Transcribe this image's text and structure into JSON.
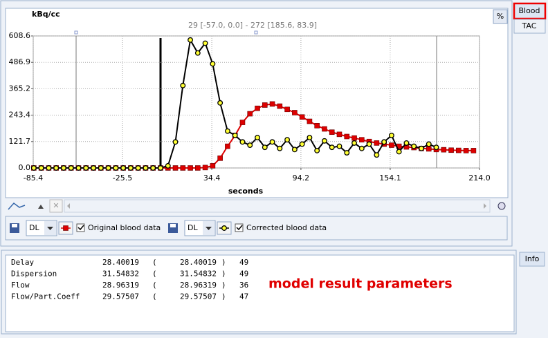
{
  "chart_data": {
    "type": "line",
    "subtitle": "29 [-57.0, 0.0] - 272 [185.6, 83.9]",
    "y_label": "kBq/cc",
    "x_label": "seconds",
    "x": [
      -85,
      -80,
      -75,
      -70,
      -65,
      -60,
      -55,
      -50,
      -45,
      -40,
      -35,
      -30,
      -25,
      -20,
      -15,
      -10,
      -5,
      0,
      5,
      10,
      15,
      20,
      25,
      30,
      35,
      40,
      45,
      50,
      55,
      60,
      65,
      70,
      75,
      80,
      85,
      90,
      95,
      100,
      105,
      110,
      115,
      120,
      125,
      130,
      135,
      140,
      145,
      150,
      155,
      160,
      165,
      170,
      175,
      180,
      185,
      190,
      195,
      200,
      205,
      210
    ],
    "series": [
      {
        "name": "Original blood data",
        "color": "#dd0000",
        "line_color": "#dd0000",
        "marker": "square",
        "values": [
          0,
          0,
          0,
          0,
          0,
          0,
          0,
          0,
          0,
          0,
          0,
          0,
          0,
          0,
          0,
          0,
          0,
          0,
          0,
          0,
          0,
          0,
          0,
          2,
          10,
          45,
          100,
          150,
          210,
          250,
          275,
          290,
          295,
          285,
          270,
          255,
          235,
          215,
          195,
          180,
          165,
          155,
          145,
          138,
          130,
          122,
          115,
          110,
          105,
          100,
          97,
          94,
          90,
          88,
          85,
          84,
          82,
          81,
          80,
          80
        ]
      },
      {
        "name": "Corrected blood data",
        "color": "#ffff33",
        "line_color": "#000000",
        "marker": "circle",
        "values": [
          0,
          0,
          0,
          0,
          0,
          0,
          0,
          0,
          0,
          0,
          0,
          0,
          0,
          0,
          0,
          0,
          0,
          0,
          10,
          120,
          380,
          590,
          530,
          575,
          480,
          300,
          170,
          150,
          120,
          105,
          140,
          95,
          120,
          90,
          130,
          85,
          110,
          140,
          80,
          125,
          95,
          100,
          70,
          115,
          90,
          110,
          60,
          120,
          150,
          75,
          115,
          100,
          90,
          110,
          95,
          null,
          null,
          null,
          null,
          null
        ]
      }
    ],
    "xlim": [
      -85.4,
      214.0
    ],
    "xticks": [
      -85.4,
      -25.5,
      34.4,
      94.2,
      154.1,
      {
        "value": 214,
        "label": "214.0"
      }
    ],
    "ylim": [
      0,
      608.6
    ],
    "yticks": [
      {
        "value": 0,
        "label": "0.0"
      },
      121.7,
      243.4,
      365.2,
      486.9,
      608.6
    ],
    "grid": true
  },
  "controls": {
    "percent": "%",
    "tabs": [
      "Blood",
      "TAC"
    ],
    "dl": [
      "DL",
      "DL"
    ],
    "info_tab": "Info"
  },
  "results": {
    "annotation": "model result parameters",
    "rows": [
      [
        "Delay",
        "28.40019",
        "(",
        "28.40019",
        ")",
        "49"
      ],
      [
        "Dispersion",
        "31.54832",
        "(",
        "31.54832",
        ")",
        "49"
      ],
      [
        "Flow",
        "28.96319",
        "(",
        "28.96319",
        ")",
        "36"
      ],
      [
        "Flow/Part.Coeff",
        "29.57507",
        "(",
        "29.57507",
        ")",
        "47"
      ]
    ]
  }
}
